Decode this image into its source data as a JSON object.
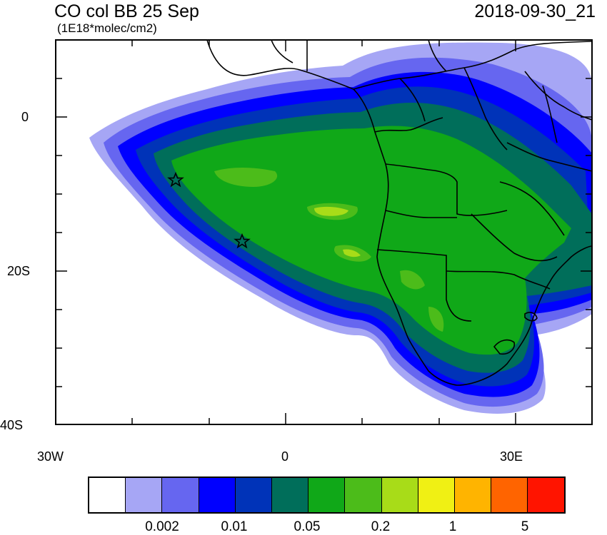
{
  "header": {
    "title": "CO col BB 25 Sep",
    "units": "(1E18*molec/cm2)",
    "timestamp": "2018-09-30_21"
  },
  "map": {
    "projection": "cylindrical-equidistant",
    "lon_range": [
      -30,
      40
    ],
    "lat_range": [
      -40,
      10
    ],
    "y_tick_labels": [
      "0",
      "20S",
      "40S"
    ],
    "x_tick_labels": [
      "30W",
      "0",
      "30E"
    ],
    "markers": [
      {
        "type": "star",
        "lon": -14.5,
        "lat": -8
      },
      {
        "type": "star",
        "lon": -5.7,
        "lat": -16
      }
    ],
    "feature": "Carbon monoxide biomass burning plume extending west from southern Africa over the South Atlantic"
  },
  "colorbar": {
    "colors": [
      "#ffffff",
      "#a6a6f5",
      "#6666f0",
      "#0000ff",
      "#0033b8",
      "#006e5a",
      "#10a818",
      "#4cbc1a",
      "#a8dc18",
      "#f0f014",
      "#ffb400",
      "#ff6400",
      "#ff1400"
    ],
    "labels": [
      "0.002",
      "0.01",
      "0.05",
      "0.2",
      "1",
      "5"
    ]
  }
}
